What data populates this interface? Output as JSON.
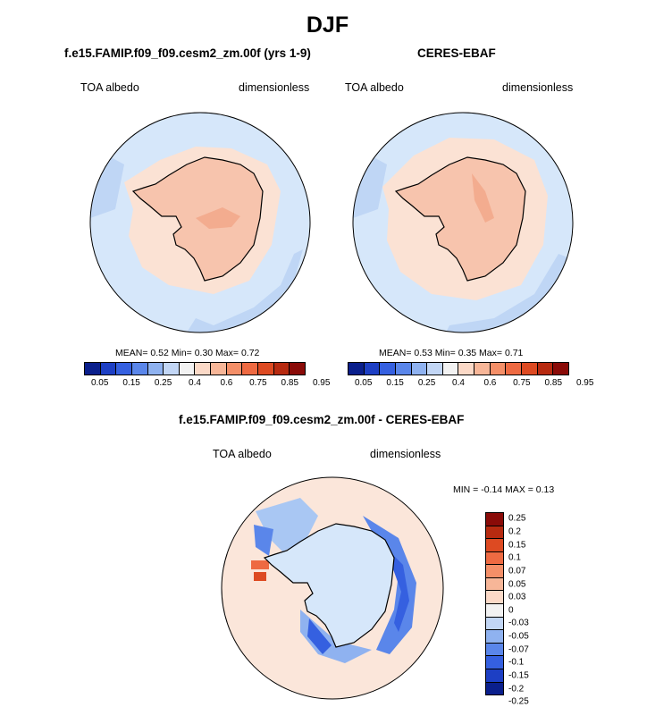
{
  "title": "DJF",
  "panels": [
    {
      "title": "f.e15.FAMIP.f09_f09.cesm2_zm.00f (yrs 1-9)",
      "left_label": "TOA albedo",
      "right_label": "dimensionless",
      "stats": "MEAN=   0.52  Min=   0.30  Max=   0.72",
      "mean": 0.52,
      "min": 0.3,
      "max": 0.72
    },
    {
      "title": "CERES-EBAF",
      "left_label": "TOA albedo",
      "right_label": "dimensionless",
      "stats": "MEAN=   0.53  Min=   0.35  Max=   0.71",
      "mean": 0.53,
      "min": 0.35,
      "max": 0.71
    },
    {
      "title": "f.e15.FAMIP.f09_f09.cesm2_zm.00f - CERES-EBAF",
      "left_label": "TOA albedo",
      "right_label": "dimensionless",
      "stats": "MIN =  -0.14 MAX =   0.13",
      "min": -0.14,
      "max": 0.13
    }
  ],
  "colorbar_main": {
    "tick_labels": [
      "0.05",
      "0.15",
      "0.25",
      "0.4",
      "0.6",
      "0.75",
      "0.85",
      "0.95"
    ],
    "colors": [
      "#0a1f8c",
      "#1d3fc4",
      "#3560e0",
      "#5a86ea",
      "#8fb2f0",
      "#c2d6f5",
      "#f2f2f2",
      "#fbd9c7",
      "#f7b698",
      "#f48f68",
      "#ee6a42",
      "#dd4a22",
      "#b72a10",
      "#8a0b08"
    ]
  },
  "colorbar_diff": {
    "labels": [
      "0.25",
      "0.2",
      "0.15",
      "0.1",
      "0.07",
      "0.05",
      "0.03",
      "0",
      "-0.03",
      "-0.05",
      "-0.07",
      "-0.1",
      "-0.15",
      "-0.2",
      "-0.25"
    ],
    "colors": [
      "#8a0b08",
      "#b72a10",
      "#dd4a22",
      "#ee6a42",
      "#f48f68",
      "#f7b698",
      "#fbd9c7",
      "#f2f2f2",
      "#c2d6f5",
      "#8fb2f0",
      "#5a86ea",
      "#3560e0",
      "#1d3fc4",
      "#0a1f8c"
    ]
  }
}
